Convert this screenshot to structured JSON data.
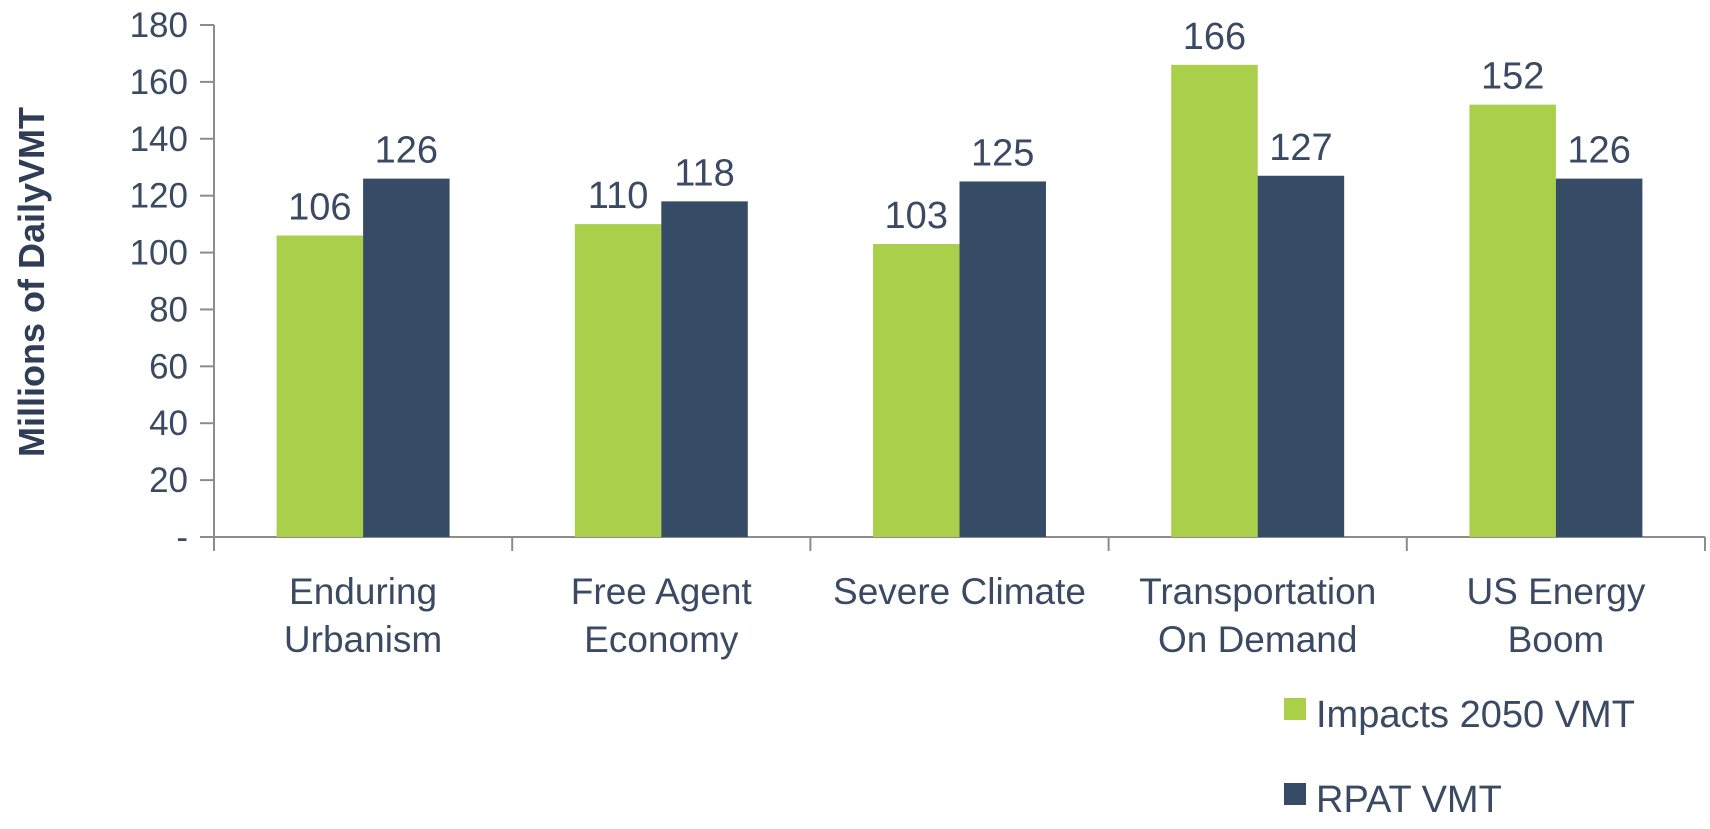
{
  "chart_data": {
    "type": "bar",
    "title": "",
    "xlabel": "",
    "ylabel": "Millions of DailyVMT",
    "ylim": [
      0,
      180
    ],
    "yticks": [
      {
        "value": 0,
        "label": "-"
      },
      {
        "value": 20,
        "label": "20"
      },
      {
        "value": 40,
        "label": "40"
      },
      {
        "value": 60,
        "label": "60"
      },
      {
        "value": 80,
        "label": "80"
      },
      {
        "value": 100,
        "label": "100"
      },
      {
        "value": 120,
        "label": "120"
      },
      {
        "value": 140,
        "label": "140"
      },
      {
        "value": 160,
        "label": "160"
      },
      {
        "value": 180,
        "label": "180"
      }
    ],
    "grid": false,
    "legend_position": "bottom-right",
    "categories": [
      [
        "Enduring",
        "Urbanism"
      ],
      [
        "Free Agent",
        "Economy"
      ],
      [
        "Severe Climate"
      ],
      [
        "Transportation",
        "On Demand"
      ],
      [
        "US Energy",
        "Boom"
      ]
    ],
    "series": [
      {
        "name": "Impacts 2050 VMT",
        "color": "#a9cf4b",
        "values": [
          106,
          110,
          103,
          166,
          152
        ]
      },
      {
        "name": "RPAT VMT",
        "color": "#364c66",
        "values": [
          126,
          118,
          125,
          127,
          126
        ]
      }
    ]
  }
}
